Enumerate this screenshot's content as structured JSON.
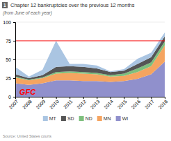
{
  "chart_data": {
    "type": "area",
    "stacked": true,
    "title": "Chapter 12 bankruptcies over the previous 12 months",
    "subtitle": "(from June of each year)",
    "source": "Source: United States courts",
    "number_label": "1",
    "x": [
      2007,
      2008,
      2009,
      2010,
      2011,
      2012,
      2013,
      2014,
      2015,
      2016,
      2017,
      2018
    ],
    "series": [
      {
        "name": "WI",
        "color": "#9090cc",
        "values": [
          18,
          16,
          18,
          22,
          22,
          21,
          21,
          20,
          21,
          24,
          30,
          47
        ]
      },
      {
        "name": "MN",
        "color": "#f5a460",
        "values": [
          8,
          6,
          7,
          9,
          10,
          10,
          9,
          7,
          7,
          9,
          11,
          22
        ]
      },
      {
        "name": "ND",
        "color": "#7dbf7d",
        "values": [
          1,
          1,
          1,
          2,
          2,
          2,
          2,
          2,
          3,
          5,
          5,
          5
        ]
      },
      {
        "name": "SD",
        "color": "#555555",
        "values": [
          3,
          2,
          3,
          7,
          7,
          7,
          6,
          4,
          4,
          6,
          7,
          7
        ]
      },
      {
        "name": "MT",
        "color": "#aac5e2",
        "values": [
          10,
          2,
          7,
          35,
          3,
          4,
          4,
          1,
          2,
          7,
          6,
          5
        ]
      }
    ],
    "reference_line": {
      "value": 75,
      "color": "red"
    },
    "annotations": [
      {
        "text": "GFC",
        "x": 2007.3,
        "y": 3,
        "color": "red"
      }
    ],
    "xlim": [
      2007,
      2018
    ],
    "xticks": [
      2007,
      2008,
      2009,
      2010,
      2011,
      2012,
      2013,
      2014,
      2015,
      2016,
      2017,
      2018
    ],
    "ylim": [
      0,
      100
    ],
    "yticks": [
      0,
      25,
      50,
      75,
      100
    ],
    "grid": true,
    "legend": "bottom"
  }
}
